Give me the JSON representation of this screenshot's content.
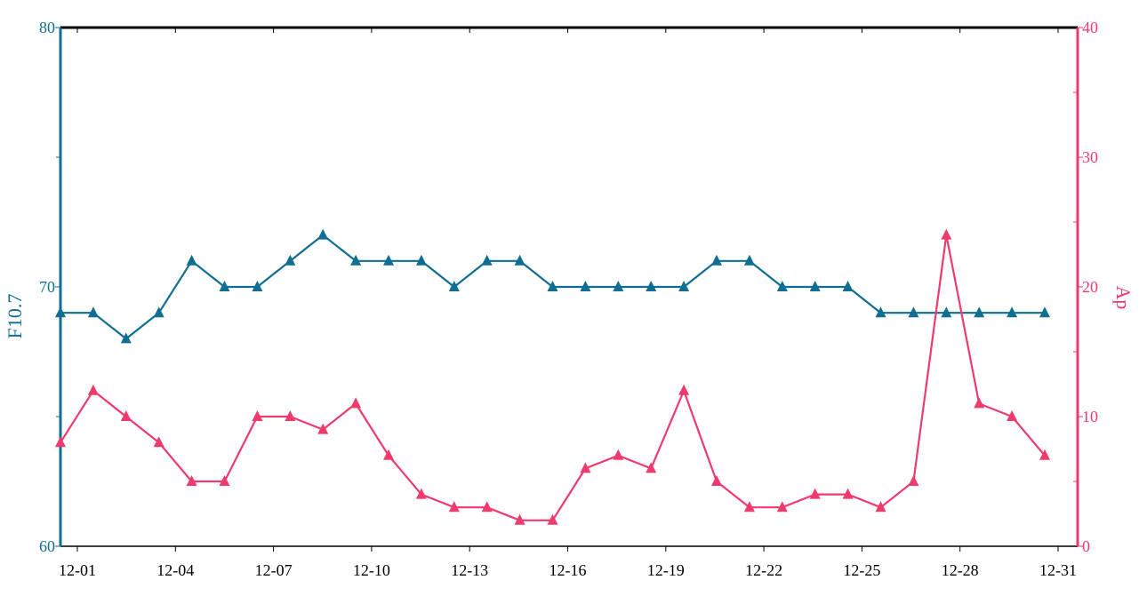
{
  "chart_data": {
    "type": "line",
    "title": "",
    "x": [
      "12-01",
      "12-02",
      "12-03",
      "12-04",
      "12-05",
      "12-06",
      "12-07",
      "12-08",
      "12-09",
      "12-10",
      "12-11",
      "12-12",
      "12-13",
      "12-14",
      "12-15",
      "12-16",
      "12-17",
      "12-18",
      "12-19",
      "12-20",
      "12-21",
      "12-22",
      "12-23",
      "12-24",
      "12-25",
      "12-26",
      "12-27",
      "12-28",
      "12-29",
      "12-30",
      "12-31"
    ],
    "x_tick_labels": [
      "12-01",
      "12-04",
      "12-07",
      "12-10",
      "12-13",
      "12-16",
      "12-19",
      "12-22",
      "12-25",
      "12-28",
      "12-31"
    ],
    "series": [
      {
        "name": "F10.7",
        "axis": "left",
        "color": "#0f6e91",
        "marker": "triangle",
        "values": [
          69,
          69,
          68,
          69,
          71,
          70,
          70,
          71,
          72,
          71,
          71,
          71,
          70,
          71,
          71,
          70,
          70,
          70,
          70,
          70,
          71,
          71,
          70,
          70,
          70,
          69,
          69,
          69,
          69,
          69,
          69
        ]
      },
      {
        "name": "Ap",
        "axis": "right",
        "color": "#ef3a6e",
        "marker": "triangle",
        "values": [
          8,
          12,
          10,
          8,
          5,
          5,
          10,
          10,
          9,
          11,
          7,
          4,
          3,
          3,
          2,
          2,
          6,
          7,
          6,
          12,
          5,
          3,
          3,
          4,
          4,
          3,
          5,
          24,
          11,
          10,
          7
        ]
      }
    ],
    "y_left": {
      "label": "F10.7",
      "lim": [
        60,
        80
      ],
      "tick_labels": [
        "60",
        "70",
        "80"
      ],
      "minor_ticks": [
        65,
        75
      ],
      "color": "#0f6e91"
    },
    "y_right": {
      "label": "Ap",
      "lim": [
        0,
        40
      ],
      "tick_labels": [
        "0",
        "10",
        "20",
        "30",
        "40"
      ],
      "color": "#ef3a6e"
    },
    "grid": false
  }
}
